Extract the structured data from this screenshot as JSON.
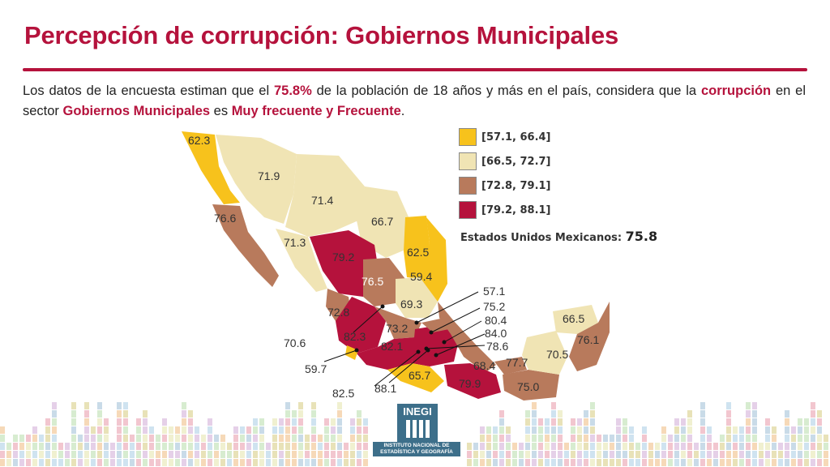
{
  "title": "Percepción de corrupción: Gobiernos Municipales",
  "intro": {
    "part1": "Los datos de la encuesta estiman que el ",
    "pct": "75.8%",
    "part2": " de la población de 18 años y más en el país, considera que la ",
    "corr": "corrupción",
    "part3": " en el sector ",
    "sector": "Gobiernos Municipales",
    "part4": " es ",
    "freq": "Muy frecuente y Frecuente",
    "part5": "."
  },
  "legend": [
    {
      "label": "[57.1, 66.4]",
      "color": "#f7c21c"
    },
    {
      "label": "[66.5, 72.7]",
      "color": "#f0e4b4"
    },
    {
      "label": "[72.8, 79.1]",
      "color": "#b87a5c"
    },
    {
      "label": "[79.2, 88.1]",
      "color": "#b5123c"
    }
  ],
  "national": {
    "label": "Estados Unidos Mexicanos: ",
    "value": "75.8"
  },
  "map_labels": {
    "bc": "62.3",
    "son": "71.9",
    "chih": "71.4",
    "coah": "66.7",
    "bcs": "76.6",
    "nl": "62.5",
    "sin": "71.3",
    "dgo": "79.2",
    "tamps": "59.4",
    "zac": "76.5",
    "slp": "69.3",
    "qro": "57.1",
    "hgo": "75.2",
    "tlax": "80.4",
    "pue": "84.0",
    "mor": "78.6",
    "nay": "72.8",
    "gto": "73.2",
    "jal": "82.3",
    "col": "70.6",
    "mich_col": "59.7",
    "mich": "82.1",
    "gro": "65.7",
    "edomex": "82.5",
    "cdmx": "88.1",
    "oax": "79.9",
    "ver": "68.4",
    "tab": "77.7",
    "chis": "75.0",
    "camp": "70.5",
    "yuc": "66.5",
    "qroo": "76.1"
  },
  "logo": {
    "word": "INEGI",
    "institution": "INSTITUTO NACIONAL DE ESTADÍSTICA Y GEOGRAFÍA"
  }
}
